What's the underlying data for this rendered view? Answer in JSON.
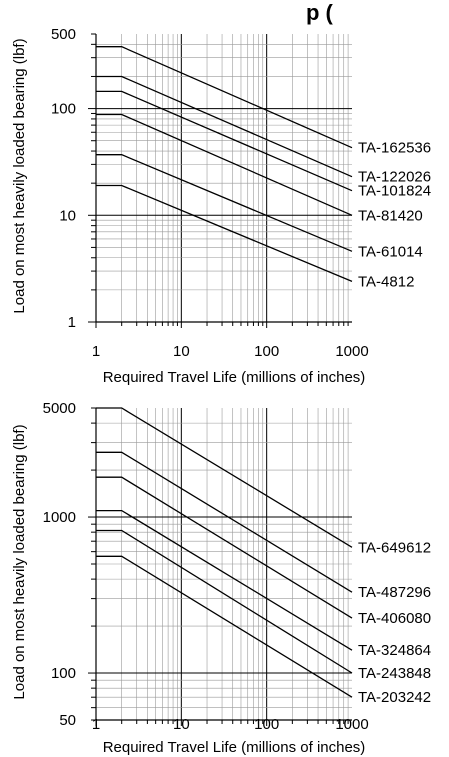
{
  "title_fragment": "p (",
  "chart_data": [
    {
      "type": "line",
      "title": "",
      "xlabel": "Required Travel Life (millions of inches)",
      "ylabel": "Load on most heavily loaded bearing (lbf)",
      "xscale": "log",
      "yscale": "log",
      "xlim": [
        1,
        1000
      ],
      "ylim": [
        1,
        500
      ],
      "x_ticks": [
        "1",
        "10",
        "100",
        "1000"
      ],
      "y_ticks": [
        {
          "value": 1,
          "label": "1"
        },
        {
          "value": 10,
          "label": "10"
        },
        {
          "value": 100,
          "label": "100"
        },
        {
          "value": 500,
          "label": "500"
        }
      ],
      "grid": true,
      "series": [
        {
          "name": "TA-162536",
          "values": [
            [
              1,
              380
            ],
            [
              2,
              380
            ],
            [
              1000,
              43
            ]
          ]
        },
        {
          "name": "TA-122026",
          "values": [
            [
              1,
              200
            ],
            [
              2,
              200
            ],
            [
              1000,
              23
            ]
          ]
        },
        {
          "name": "TA-101824",
          "values": [
            [
              1,
              145
            ],
            [
              2,
              145
            ],
            [
              1000,
              17
            ]
          ]
        },
        {
          "name": "TA-81420",
          "values": [
            [
              1,
              88
            ],
            [
              2,
              88
            ],
            [
              1000,
              10
            ]
          ]
        },
        {
          "name": "TA-61014",
          "values": [
            [
              1,
              37
            ],
            [
              2,
              37
            ],
            [
              1000,
              4.6
            ]
          ]
        },
        {
          "name": "TA-4812",
          "values": [
            [
              1,
              19
            ],
            [
              2,
              19
            ],
            [
              1000,
              2.4
            ]
          ]
        }
      ]
    },
    {
      "type": "line",
      "title": "",
      "xlabel": "Required Travel Life (millions of inches)",
      "ylabel": "Load on most heavily loaded bearing (lbf)",
      "xscale": "log",
      "yscale": "log",
      "xlim": [
        1,
        1000
      ],
      "ylim": [
        50,
        5000
      ],
      "x_ticks": [
        "1",
        "10",
        "100",
        "1000"
      ],
      "y_ticks": [
        {
          "value": 50,
          "label": "50"
        },
        {
          "value": 100,
          "label": "100"
        },
        {
          "value": 1000,
          "label": "1000"
        },
        {
          "value": 5000,
          "label": "5000"
        }
      ],
      "grid": true,
      "series": [
        {
          "name": "TA-649612",
          "values": [
            [
              1,
              5000
            ],
            [
              2,
              5000
            ],
            [
              1000,
              640
            ]
          ]
        },
        {
          "name": "TA-487296",
          "values": [
            [
              1,
              2600
            ],
            [
              2,
              2600
            ],
            [
              1000,
              330
            ]
          ]
        },
        {
          "name": "TA-406080",
          "values": [
            [
              1,
              1800
            ],
            [
              2,
              1800
            ],
            [
              1000,
              225
            ]
          ]
        },
        {
          "name": "TA-324864",
          "values": [
            [
              1,
              1100
            ],
            [
              2,
              1100
            ],
            [
              1000,
              140
            ]
          ]
        },
        {
          "name": "TA-243848",
          "values": [
            [
              1,
              820
            ],
            [
              2,
              820
            ],
            [
              1000,
              100
            ]
          ]
        },
        {
          "name": "TA-203242",
          "values": [
            [
              1,
              560
            ],
            [
              2,
              560
            ],
            [
              1000,
              70
            ]
          ]
        }
      ]
    }
  ]
}
